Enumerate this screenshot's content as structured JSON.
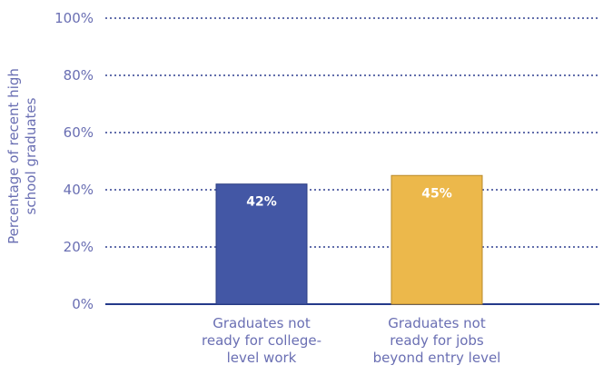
{
  "colors": {
    "text": "#6a6fb3",
    "grid": "#2f3f8f",
    "axis": "#243a8a",
    "data_label": "#ffffff"
  },
  "chart_data": {
    "type": "bar",
    "categories": [
      "Graduates not ready for college-level work",
      "Graduates not ready for jobs beyond entry level"
    ],
    "category_label_lines": [
      [
        "Graduates not",
        "ready for college-",
        "level work"
      ],
      [
        "Graduates not",
        "ready for jobs",
        "beyond entry level"
      ]
    ],
    "values": [
      42,
      45
    ],
    "data_labels": [
      "42%",
      "45%"
    ],
    "bar_colors": [
      "#4357a5",
      "#ecb84b"
    ],
    "bar_edge_colors": [
      "#2b3d82",
      "#b98a2a"
    ],
    "ylim": [
      0,
      100
    ],
    "yticks": [
      0,
      20,
      40,
      60,
      80,
      100
    ],
    "ytick_labels": [
      "0%",
      "20%",
      "40%",
      "60%",
      "80%",
      "100%"
    ],
    "ylabel_lines": [
      "Percentage of recent high",
      "school graduates"
    ],
    "xlabel": "",
    "title": "",
    "grid": "horizontal dotted",
    "legend": "none"
  }
}
